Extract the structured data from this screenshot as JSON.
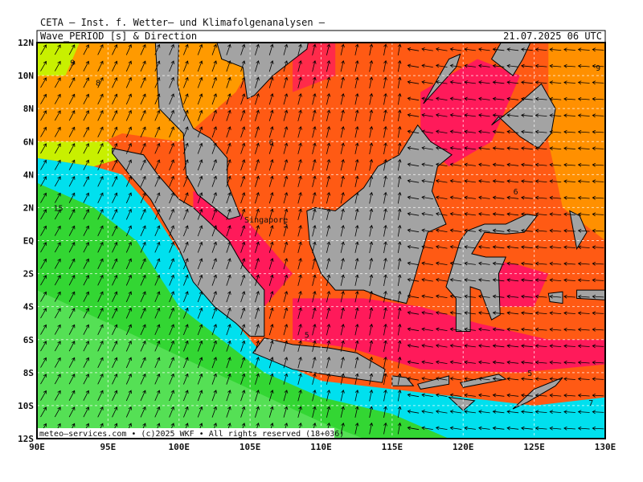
{
  "header": {
    "institute": "CETA – Inst. f. Wetter– und Klimafolgenanalysen –",
    "variable": "Wave_PERIOD [s] & Direction",
    "valid_time": "21.07.2025 06 UTC"
  },
  "map": {
    "lat_labels": [
      "12N",
      "10N",
      "8N",
      "6N",
      "4N",
      "2N",
      "EQ",
      "2S",
      "4S",
      "6S",
      "8S",
      "10S",
      "12S"
    ],
    "lon_labels": [
      "90E",
      "95E",
      "100E",
      "105E",
      "110E",
      "115E",
      "120E",
      "125E",
      "130E"
    ],
    "contour_labels": [
      "9",
      "8",
      "15",
      "6",
      "5",
      "6",
      "5",
      "5",
      "9",
      "7"
    ],
    "place_labels": [
      "Singapore"
    ],
    "copyright": "meteo–services.com • (c)2025 WKF • All rights reserved (18+036)"
  }
}
